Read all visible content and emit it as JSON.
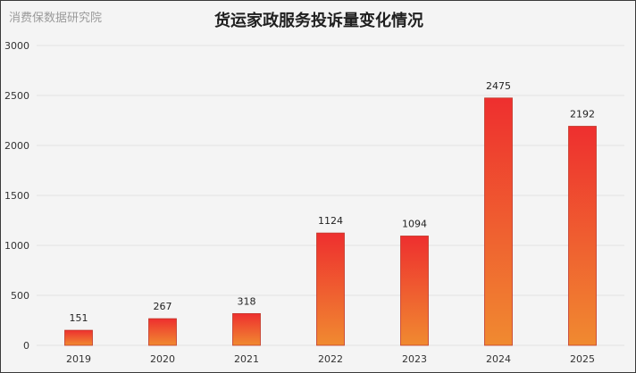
{
  "watermark": "消费保数据研究院",
  "chart_data": {
    "type": "bar",
    "title": "货运家政服务投诉量变化情况",
    "xlabel": "",
    "ylabel": "",
    "categories": [
      "2019",
      "2020",
      "2021",
      "2022",
      "2023",
      "2024",
      "2025"
    ],
    "values": [
      151,
      267,
      318,
      1124,
      1094,
      2475,
      2192
    ],
    "ylim": [
      0,
      3000
    ],
    "yticks": [
      0,
      500,
      1000,
      1500,
      2000,
      2500,
      3000
    ],
    "grid": true,
    "legend": "none",
    "data_labels": true,
    "colors": {
      "bar_top": "#ee2f2f",
      "bar_bottom": "#f08a30",
      "bar_border": "#c0392b",
      "grid": "#e2e2e2"
    }
  }
}
